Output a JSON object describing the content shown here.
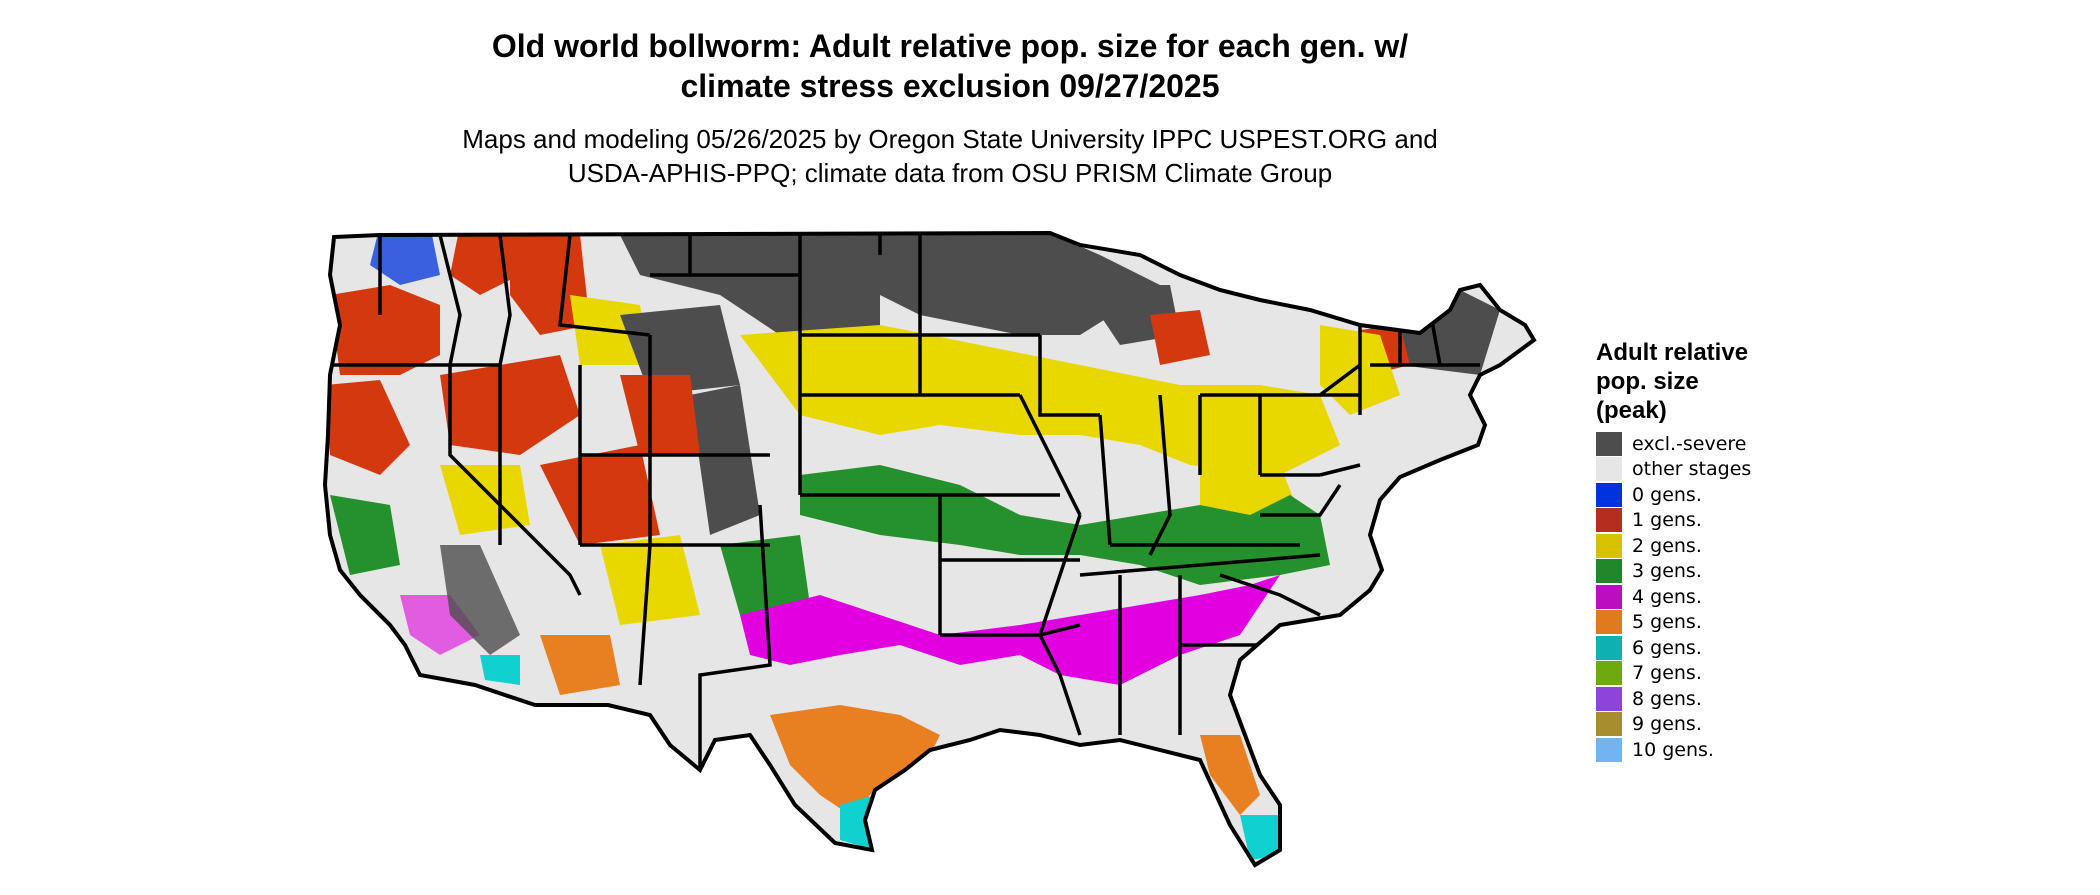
{
  "title": {
    "line1": "Old world bollworm: Adult relative pop. size for each gen. w/",
    "line2": "climate stress exclusion 09/27/2025"
  },
  "subtitle": {
    "line1": "Maps and modeling 05/26/2025 by Oregon State University IPPC USPEST.ORG and",
    "line2": "USDA-APHIS-PPQ; climate data from OSU PRISM Climate Group"
  },
  "legend": {
    "title": [
      "Adult relative",
      "pop. size",
      "(peak)"
    ],
    "items": [
      {
        "label": "excl.-severe",
        "color": "#4d4d4d"
      },
      {
        "label": "other stages",
        "color": "#e6e6e6"
      },
      {
        "label": "0 gens.",
        "color": "#0033dd"
      },
      {
        "label": "1 gens.",
        "color": "#b52d1e"
      },
      {
        "label": "2 gens.",
        "color": "#d8c100"
      },
      {
        "label": "3 gens.",
        "color": "#21872a"
      },
      {
        "label": "4 gens.",
        "color": "#bb0ec0"
      },
      {
        "label": "5 gens.",
        "color": "#df7a1e"
      },
      {
        "label": "6 gens.",
        "color": "#0eb0b0"
      },
      {
        "label": "7 gens.",
        "color": "#6fa910"
      },
      {
        "label": "8 gens.",
        "color": "#8e44db"
      },
      {
        "label": "9 gens.",
        "color": "#a88d2e"
      },
      {
        "label": "10 gens.",
        "color": "#73b4f0"
      }
    ]
  },
  "map": {
    "region": "Contiguous United States",
    "colors": {
      "excluded": "#4d4d4d",
      "other": "#e6e6e6",
      "gen0": "#0033dd",
      "gen1": "#d4380f",
      "gen2": "#e8d800",
      "gen3": "#24912c",
      "gen4": "#e000e0",
      "gen5": "#e87f20",
      "gen6": "#11d0d0",
      "gen7": "#6fa910",
      "gen10": "#73b4f0",
      "border": "#000000"
    }
  }
}
